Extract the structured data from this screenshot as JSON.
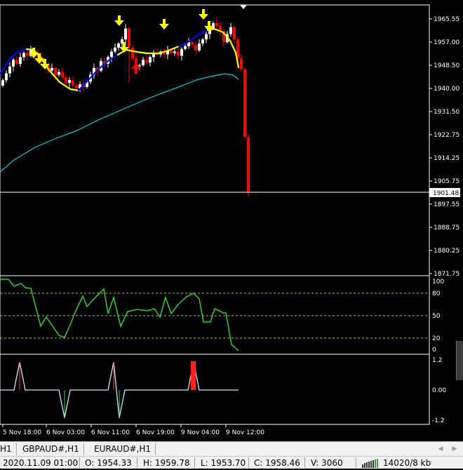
{
  "price_panel": {
    "y_ticks": [
      "1965.55",
      "1957.00",
      "1948.50",
      "1940.00",
      "1931.50",
      "1922.75",
      "1914.25",
      "1905.75",
      "1897.55",
      "1888.75",
      "1880.25",
      "1871.75"
    ],
    "current_price": "1901.48"
  },
  "stoch_panel": {
    "ticks": [
      "100",
      "80",
      "50",
      "20",
      "0"
    ]
  },
  "signal_panel": {
    "ticks": [
      "1.2",
      "0.00",
      "-1.2"
    ]
  },
  "time_axis": {
    "labels": [
      "5 Nov 18:00",
      "6 Nov 03:00",
      "6 Nov 11:00",
      "6 Nov 19:00",
      "9 Nov 04:00",
      "9 Nov 12:00"
    ]
  },
  "tabs": [
    "H1",
    "GBPAUD#,H1",
    "EURAUD#,H1"
  ],
  "status_bar": {
    "datetime": "2020.11.09 01:00",
    "open": "O: 1954.33",
    "high": "H: 1959.78",
    "low": "L: 1953.70",
    "close": "C: 1958.46",
    "volume": "V: 3060",
    "traffic": "14020/8 kb"
  },
  "colors": {
    "bull": "#ffffff",
    "bear": "#ff0000",
    "ma_fast_up": "#0000ff",
    "ma_fast_down": "#ffff00",
    "ma_slow": "#00c8e0",
    "stochastic": "#32cd32",
    "arrow_sell": "#ffff00",
    "arrow_buy": "#ff0000"
  }
}
